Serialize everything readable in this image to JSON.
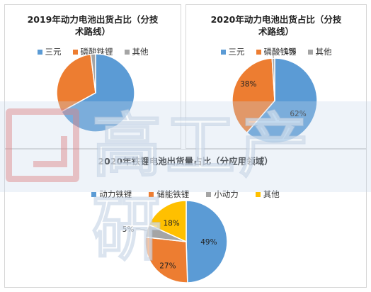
{
  "chart_data": [
    {
      "type": "pie",
      "title_lines": [
        "2019年动力电池出货占比（分技",
        "术路线）"
      ],
      "categories": [
        "三元",
        "磷酸铁锂",
        "其他"
      ],
      "values": [
        67,
        31,
        2
      ],
      "colors": [
        "#5b9bd5",
        "#ed7d31",
        "#a5a5a5"
      ],
      "data_labels": [
        "",
        "",
        ""
      ],
      "legend": "top"
    },
    {
      "type": "pie",
      "title_lines": [
        "2020年动力电池出货占比（分技",
        "术路线）"
      ],
      "categories": [
        "三元",
        "磷酸铁锂",
        "其他"
      ],
      "values": [
        62,
        38,
        1
      ],
      "colors": [
        "#5b9bd5",
        "#ed7d31",
        "#a5a5a5"
      ],
      "data_labels": [
        "62%",
        "38%",
        "1%"
      ],
      "legend": "top"
    },
    {
      "type": "pie",
      "title_lines": [
        "2020年铁锂电池出货量占比（分应用领域）"
      ],
      "categories": [
        "动力铁锂",
        "储能铁锂",
        "小动力",
        "其他"
      ],
      "values": [
        49,
        27,
        5,
        18
      ],
      "colors": [
        "#5b9bd5",
        "#ed7d31",
        "#a5a5a5",
        "#ffc000"
      ],
      "data_labels": [
        "49%",
        "27%",
        "5%",
        "18%"
      ],
      "legend": "top"
    }
  ],
  "watermark": {
    "text": "高工产研",
    "logo": "G-logo"
  }
}
